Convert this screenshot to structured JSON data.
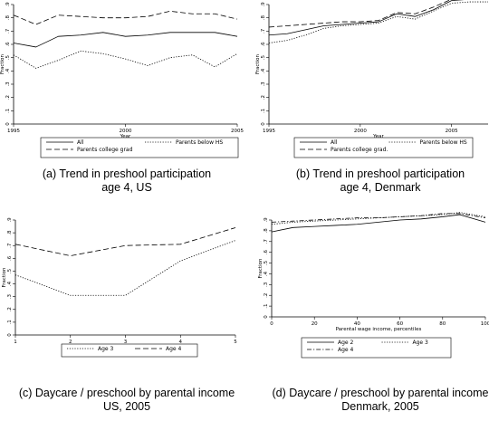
{
  "chart_data": [
    {
      "type": "line",
      "caption_line1": "(a) Trend in preshool participation",
      "caption_line2": "age 4, US",
      "xlabel": "Year",
      "ylabel": "Fraction",
      "xlim": [
        1995,
        2005
      ],
      "ylim": [
        0,
        0.9
      ],
      "xticks": [
        "1995",
        "2000",
        "2005"
      ],
      "yticks": [
        "0",
        ".1",
        ".2",
        ".3",
        ".4",
        ".5",
        ".6",
        ".7",
        ".8",
        ".9"
      ],
      "x": [
        1995,
        1996,
        1997,
        1998,
        1999,
        2000,
        2001,
        2002,
        2003,
        2004,
        2005
      ],
      "series": [
        {
          "name": "All",
          "dash": "solid",
          "values": [
            0.61,
            0.58,
            0.66,
            0.67,
            0.69,
            0.66,
            0.67,
            0.69,
            0.69,
            0.69,
            0.66
          ]
        },
        {
          "name": "Parents below HS",
          "dash": "dot",
          "values": [
            0.52,
            0.42,
            0.48,
            0.55,
            0.53,
            0.49,
            0.44,
            0.5,
            0.52,
            0.43,
            0.53
          ]
        },
        {
          "name": "Parents college grad",
          "dash": "dash",
          "values": [
            0.82,
            0.75,
            0.82,
            0.81,
            0.8,
            0.8,
            0.81,
            0.85,
            0.83,
            0.83,
            0.79
          ]
        }
      ],
      "legend_cols": 2
    },
    {
      "type": "line",
      "caption_line1": "(b) Trend in preshool participation",
      "caption_line2": "age 4, Denmark",
      "xlabel": "Year",
      "ylabel": "Fraction",
      "xlim": [
        1995,
        2007
      ],
      "ylim": [
        0,
        0.9
      ],
      "xticks": [
        "1995",
        "2000",
        "2005"
      ],
      "yticks": [
        "0",
        ".1",
        ".2",
        ".3",
        ".4",
        ".5",
        ".6",
        ".7",
        ".8",
        ".9"
      ],
      "x": [
        1995,
        1996,
        1997,
        1998,
        1999,
        2000,
        2001,
        2002,
        2003,
        2004,
        2005,
        2006,
        2007
      ],
      "series": [
        {
          "name": "All",
          "dash": "solid",
          "values": [
            0.67,
            0.68,
            0.71,
            0.74,
            0.75,
            0.76,
            0.77,
            0.83,
            0.81,
            0.86,
            0.93,
            0.94,
            0.94
          ]
        },
        {
          "name": "Parents below HS",
          "dash": "dot",
          "values": [
            0.61,
            0.63,
            0.67,
            0.72,
            0.74,
            0.75,
            0.76,
            0.81,
            0.79,
            0.85,
            0.91,
            0.92,
            0.92
          ]
        },
        {
          "name": "Parents college grad.",
          "dash": "dash",
          "values": [
            0.73,
            0.74,
            0.75,
            0.76,
            0.77,
            0.77,
            0.78,
            0.84,
            0.83,
            0.88,
            0.94,
            0.95,
            0.95
          ]
        }
      ],
      "legend_cols": 2
    },
    {
      "type": "line",
      "caption_line1": "(c) Daycare / preschool by parental income",
      "caption_line2": "US, 2005",
      "xlabel": "Parental Wage Income, Quantiles",
      "ylabel": "Fraction",
      "xlim": [
        1,
        5
      ],
      "ylim": [
        0,
        0.9
      ],
      "xticks": [
        "1",
        "2",
        "3",
        "4",
        "5"
      ],
      "yticks": [
        "0",
        ".1",
        ".2",
        ".3",
        ".4",
        ".5",
        ".6",
        ".7",
        ".8",
        ".9"
      ],
      "x": [
        1,
        2,
        3,
        4,
        5
      ],
      "series": [
        {
          "name": "Age 3",
          "dash": "dot",
          "values": [
            0.47,
            0.31,
            0.31,
            0.58,
            0.74
          ]
        },
        {
          "name": "Age 4",
          "dash": "dash",
          "values": [
            0.71,
            0.62,
            0.7,
            0.71,
            0.84
          ]
        }
      ],
      "legend_cols": 2
    },
    {
      "type": "line",
      "caption_line1": "(d) Daycare / preschool by parental income",
      "caption_line2": "Denmark, 2005",
      "xlabel": "Parental wage income, percentiles",
      "ylabel": "Fraction",
      "xlim": [
        0,
        100
      ],
      "ylim": [
        0,
        0.9
      ],
      "xticks": [
        "0",
        "20",
        "40",
        "60",
        "80",
        "100"
      ],
      "yticks": [
        "0",
        ".1",
        ".2",
        ".3",
        ".4",
        ".5",
        ".6",
        ".7",
        ".8",
        ".9"
      ],
      "x": [
        0,
        10,
        20,
        30,
        40,
        50,
        60,
        70,
        80,
        88,
        100
      ],
      "series": [
        {
          "name": "Age 2",
          "dash": "solid",
          "values": [
            0.79,
            0.83,
            0.84,
            0.85,
            0.86,
            0.88,
            0.9,
            0.91,
            0.93,
            0.95,
            0.88
          ]
        },
        {
          "name": "Age 3",
          "dash": "dot",
          "values": [
            0.86,
            0.88,
            0.89,
            0.9,
            0.91,
            0.92,
            0.93,
            0.94,
            0.95,
            0.97,
            0.93
          ]
        },
        {
          "name": "Age 4",
          "dash": "dashdot",
          "values": [
            0.88,
            0.89,
            0.9,
            0.91,
            0.92,
            0.92,
            0.93,
            0.94,
            0.96,
            0.96,
            0.92
          ]
        }
      ],
      "legend_cols": 2
    }
  ]
}
